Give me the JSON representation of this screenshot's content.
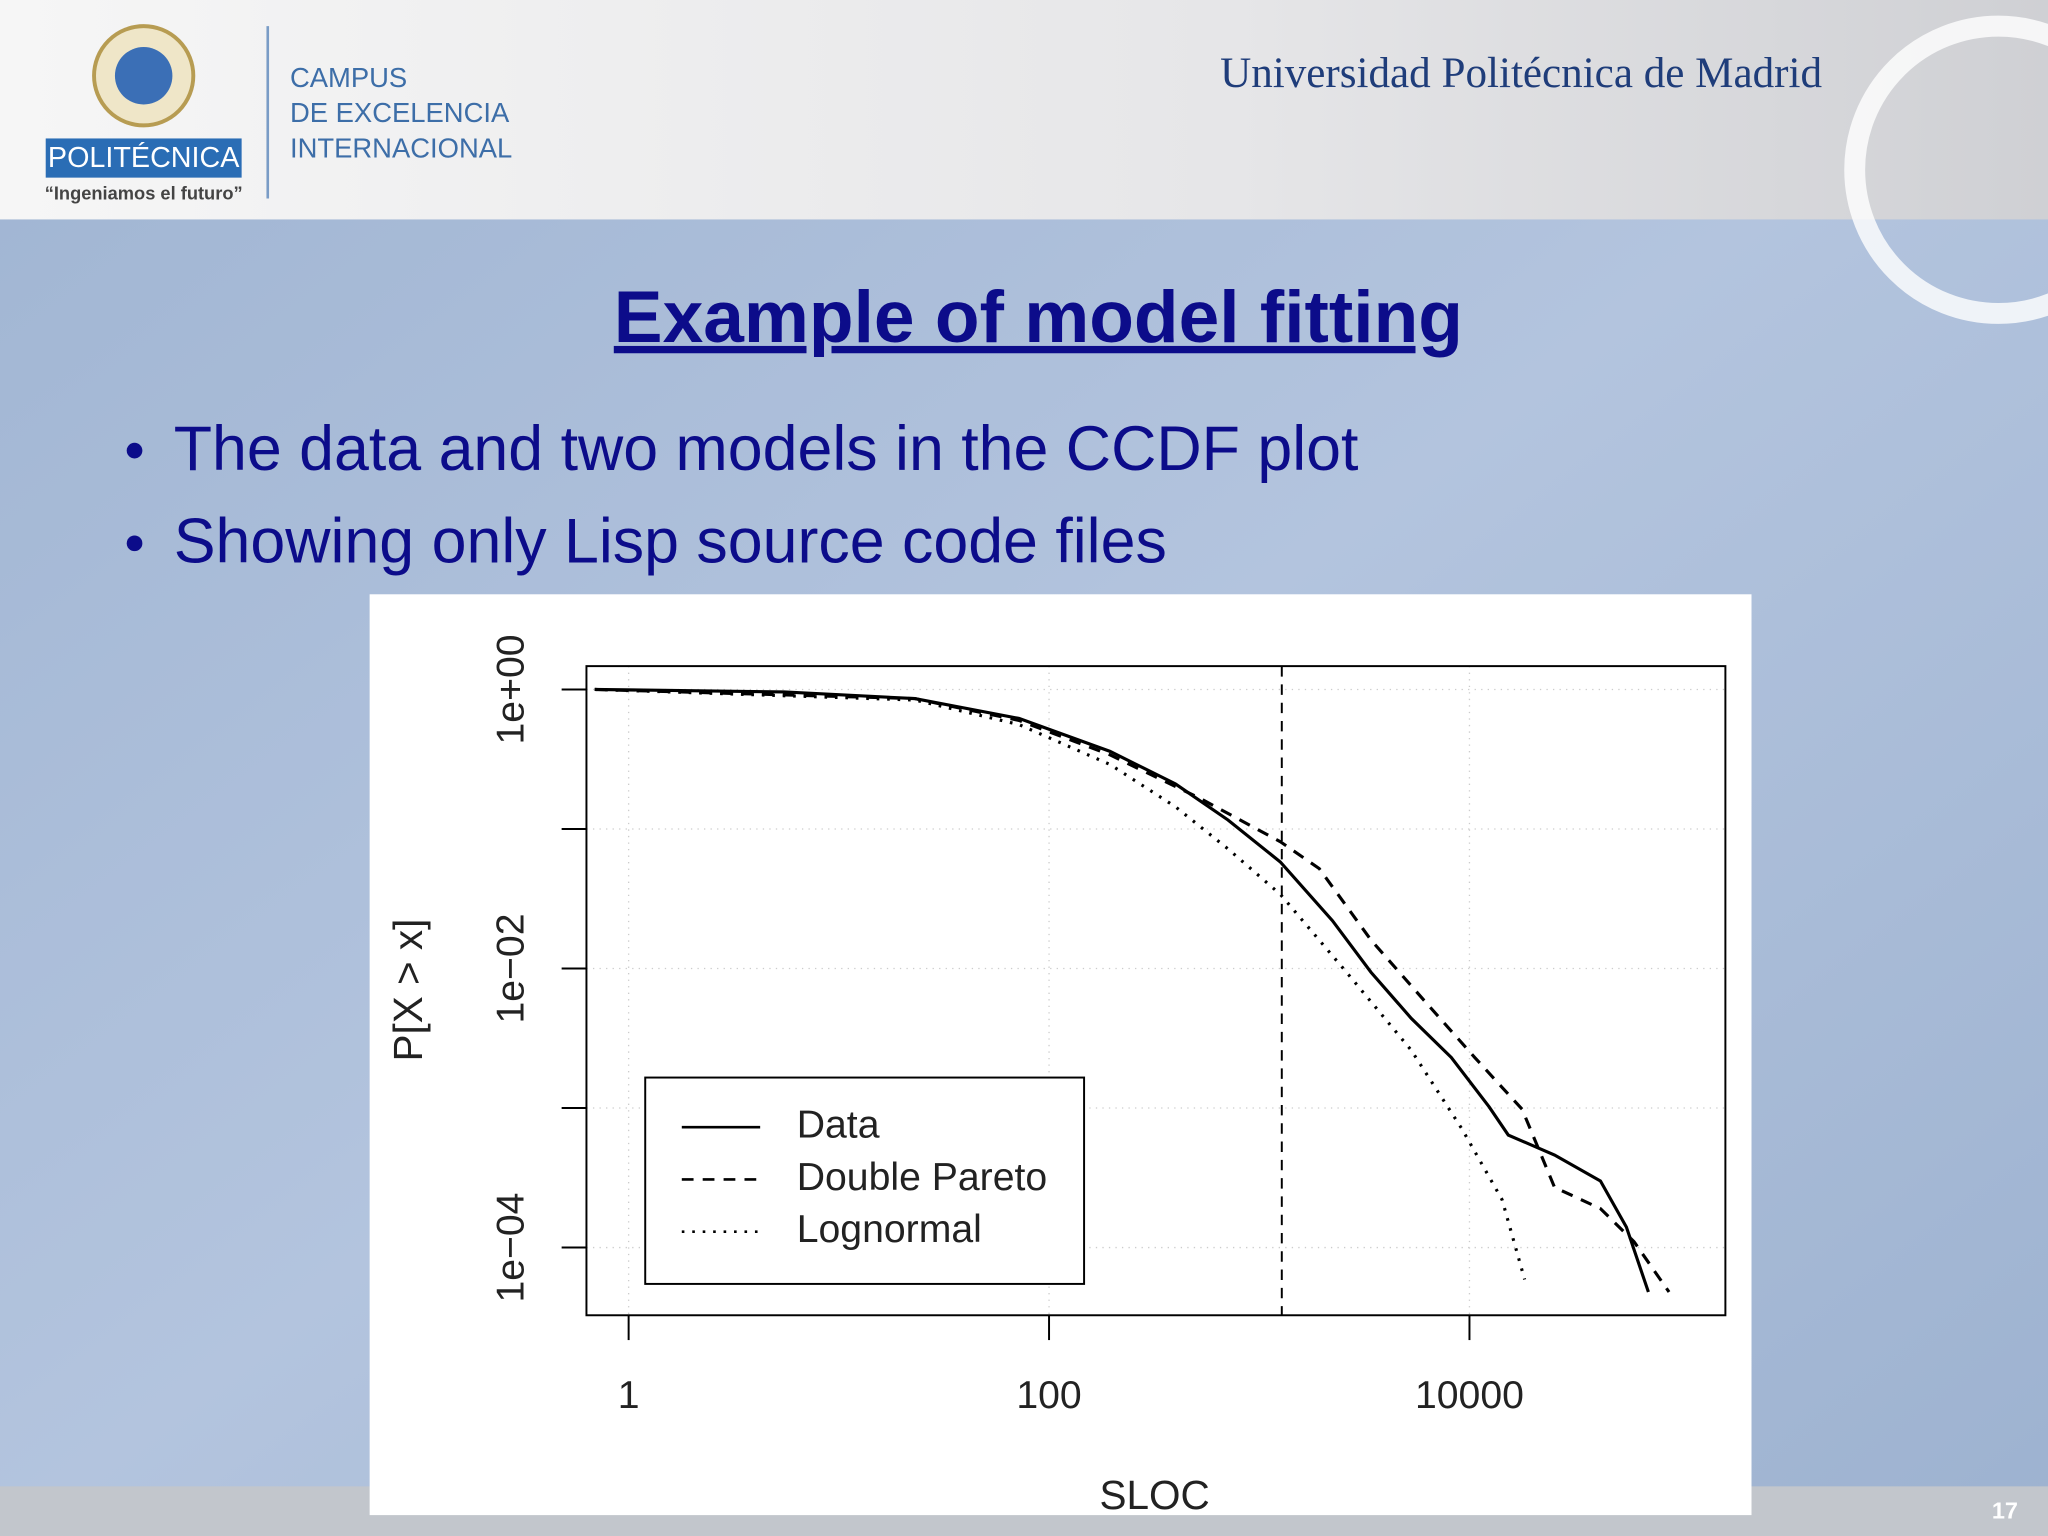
{
  "header": {
    "brand": "POLITÉCNICA",
    "motto": "“Ingeniamos el futuro”",
    "campus": [
      "CAMPUS",
      "DE EXCELENCIA",
      "INTERNACIONAL"
    ],
    "university": "Universidad Politécnica de Madrid"
  },
  "slide": {
    "title": "Example of model fitting",
    "bullets": [
      "The data and two models in the CCDF plot",
      "Showing only Lisp source code files"
    ],
    "page_number": "17"
  },
  "chart_data": {
    "type": "line",
    "xlabel": "SLOC",
    "ylabel": "P[X > x]",
    "xlog": true,
    "ylog": true,
    "xlim": [
      0.63,
      165000
    ],
    "ylim": [
      3.27e-05,
      1.47
    ],
    "xticks": [
      1,
      100,
      10000
    ],
    "yticks": [
      {
        "value": 1,
        "label": "1e+00"
      },
      {
        "value": 0.01,
        "label": "1e−02"
      },
      {
        "value": 0.0001,
        "label": "1e−04"
      }
    ],
    "yminor_ticks": [
      0.1,
      0.001
    ],
    "grid": true,
    "legend": "bottom-left",
    "threshold_x": 1280,
    "series": [
      {
        "name": "Data",
        "color": "#000000",
        "dash": "solid",
        "x": [
          0.69,
          5.5,
          23,
          72,
          195,
          400,
          710,
          1260,
          2230,
          3400,
          5280,
          8200,
          12400,
          15300,
          25400,
          42000,
          55800,
          71000
        ],
        "values": [
          1,
          0.96,
          0.86,
          0.62,
          0.36,
          0.21,
          0.116,
          0.058,
          0.022,
          0.0094,
          0.0044,
          0.0023,
          0.00102,
          0.00064,
          0.00046,
          0.0003,
          0.00014,
          4.8e-05
        ]
      },
      {
        "name": "Double Pareto",
        "color": "#000000",
        "dash": "dashed",
        "x": [
          0.69,
          23,
          72,
          195,
          530,
          1260,
          1930,
          3400,
          5970,
          10600,
          17800,
          25400,
          42000,
          60700,
          89000
        ],
        "values": [
          1,
          0.86,
          0.6,
          0.34,
          0.164,
          0.081,
          0.052,
          0.016,
          0.0061,
          0.0023,
          0.00098,
          0.00027,
          0.00019,
          0.00011,
          4.8e-05
        ]
      },
      {
        "name": "Lognormal",
        "color": "#000000",
        "dash": "dotted",
        "x": [
          0.69,
          23,
          72,
          195,
          400,
          710,
          1260,
          2600,
          5280,
          9200,
          14300,
          18300
        ],
        "values": [
          1,
          0.84,
          0.56,
          0.29,
          0.144,
          0.072,
          0.034,
          0.0094,
          0.0026,
          0.00071,
          0.00022,
          5.9e-05
        ]
      }
    ]
  }
}
